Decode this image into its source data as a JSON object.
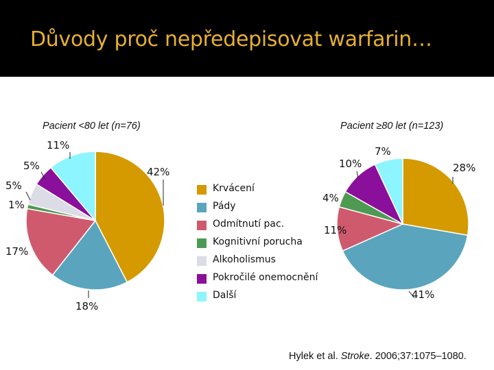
{
  "title": "Důvody proč nepředepisovat warfarin…",
  "legend": [
    {
      "label": "Krvácení",
      "color": "#d49a00"
    },
    {
      "label": "Pády",
      "color": "#5aa5bd"
    },
    {
      "label": "Odmítnutí pac.",
      "color": "#cf5a6e"
    },
    {
      "label": "Kognitivní porucha",
      "color": "#4e9a52"
    },
    {
      "label": "Alkoholismus",
      "color": "#dcdce6"
    },
    {
      "label": "Pokročilé onemocnění",
      "color": "#8a0f9a"
    },
    {
      "label": "Další",
      "color": "#8df5ff"
    }
  ],
  "citation": {
    "authors": "Hylek et al. ",
    "journal": "Stroke",
    "details": ". 2006;37:1075–1080."
  },
  "chart_data": [
    {
      "type": "pie",
      "title": "Pacient <80 let (n=76)",
      "slices": [
        {
          "category": "Krvácení",
          "value": 42,
          "label": "42%"
        },
        {
          "category": "Pády",
          "value": 18,
          "label": "18%"
        },
        {
          "category": "Odmítnutí pac.",
          "value": 17,
          "label": "17%"
        },
        {
          "category": "Kognitivní porucha",
          "value": 1,
          "label": "1%"
        },
        {
          "category": "Alkoholismus",
          "value": 5,
          "label": "5%"
        },
        {
          "category": "Pokročilé onemocnění",
          "value": 5,
          "label": "5%"
        },
        {
          "category": "Další",
          "value": 11,
          "label": "11%"
        }
      ]
    },
    {
      "type": "pie",
      "title": "Pacient ≥80 let (n=123)",
      "slices": [
        {
          "category": "Krvácení",
          "value": 28,
          "label": "28%"
        },
        {
          "category": "Pády",
          "value": 41,
          "label": "41%"
        },
        {
          "category": "Odmítnutí pac.",
          "value": 11,
          "label": "11%"
        },
        {
          "category": "Kognitivní porucha",
          "value": 4,
          "label": "4%"
        },
        {
          "category": "Pokročilé onemocnění",
          "value": 10,
          "label": "10%"
        },
        {
          "category": "Další",
          "value": 7,
          "label": "7%"
        }
      ]
    }
  ]
}
